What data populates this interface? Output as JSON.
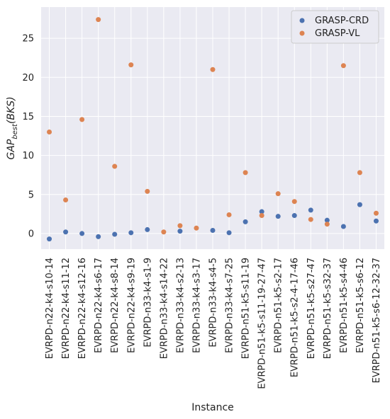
{
  "chart_data": {
    "type": "scatter",
    "categories": [
      "EVRPD-n22-k4-s10-14",
      "EVRPD-n22-k4-s11-12",
      "EVRPD-n22-k4-s12-16",
      "EVRPD-n22-k4-s6-17",
      "EVRPD-n22-k4-s8-14",
      "EVRPD-n22-k4-s9-19",
      "EVRPD-n33-k4-s1-9",
      "EVRPD-n33-k4-s14-22",
      "EVRPD-n33-k4-s2-13",
      "EVRPD-n33-k4-s3-17",
      "EVRPD-n33-k4-s4-5",
      "EVRPD-n33-k4-s7-25",
      "EVRPD-n51-k5-s11-19",
      "EVRPD-n51-k5-s11-19-27-47",
      "EVRPD-n51-k5-s2-17",
      "EVRPD-n51-k5-s2-4-17-46",
      "EVRPD-n51-k5-s27-47",
      "EVRPD-n51-k5-s32-37",
      "EVRPD-n51-k5-s4-46",
      "EVRPD-n51-k5-s6-12",
      "EVRPD-n51-k5-s6-12-32-37"
    ],
    "series": [
      {
        "name": "GRASP-CRD",
        "color": "#4c72b0",
        "values": [
          -0.7,
          0.2,
          0.0,
          -0.4,
          -0.1,
          0.1,
          0.5,
          null,
          0.3,
          null,
          0.4,
          0.1,
          1.5,
          2.8,
          2.2,
          2.3,
          3.0,
          1.7,
          0.9,
          3.7,
          1.6
        ]
      },
      {
        "name": "GRASP-VL",
        "color": "#dd8452",
        "values": [
          13.0,
          4.3,
          14.6,
          27.4,
          8.6,
          21.6,
          5.4,
          0.2,
          1.0,
          0.7,
          21.0,
          2.4,
          7.8,
          2.3,
          5.1,
          4.1,
          1.8,
          1.2,
          21.5,
          7.8,
          2.6
        ]
      }
    ],
    "xlabel": "Instance",
    "ylabel_main": "GAP",
    "ylabel_sub": "best",
    "ylabel_rest": "(BKS)",
    "ylim": [
      -2.0,
      29.0
    ],
    "yticks": [
      0,
      5,
      10,
      15,
      20,
      25
    ],
    "grid": true,
    "legend": "top-right",
    "background": "#eaeaf2"
  }
}
